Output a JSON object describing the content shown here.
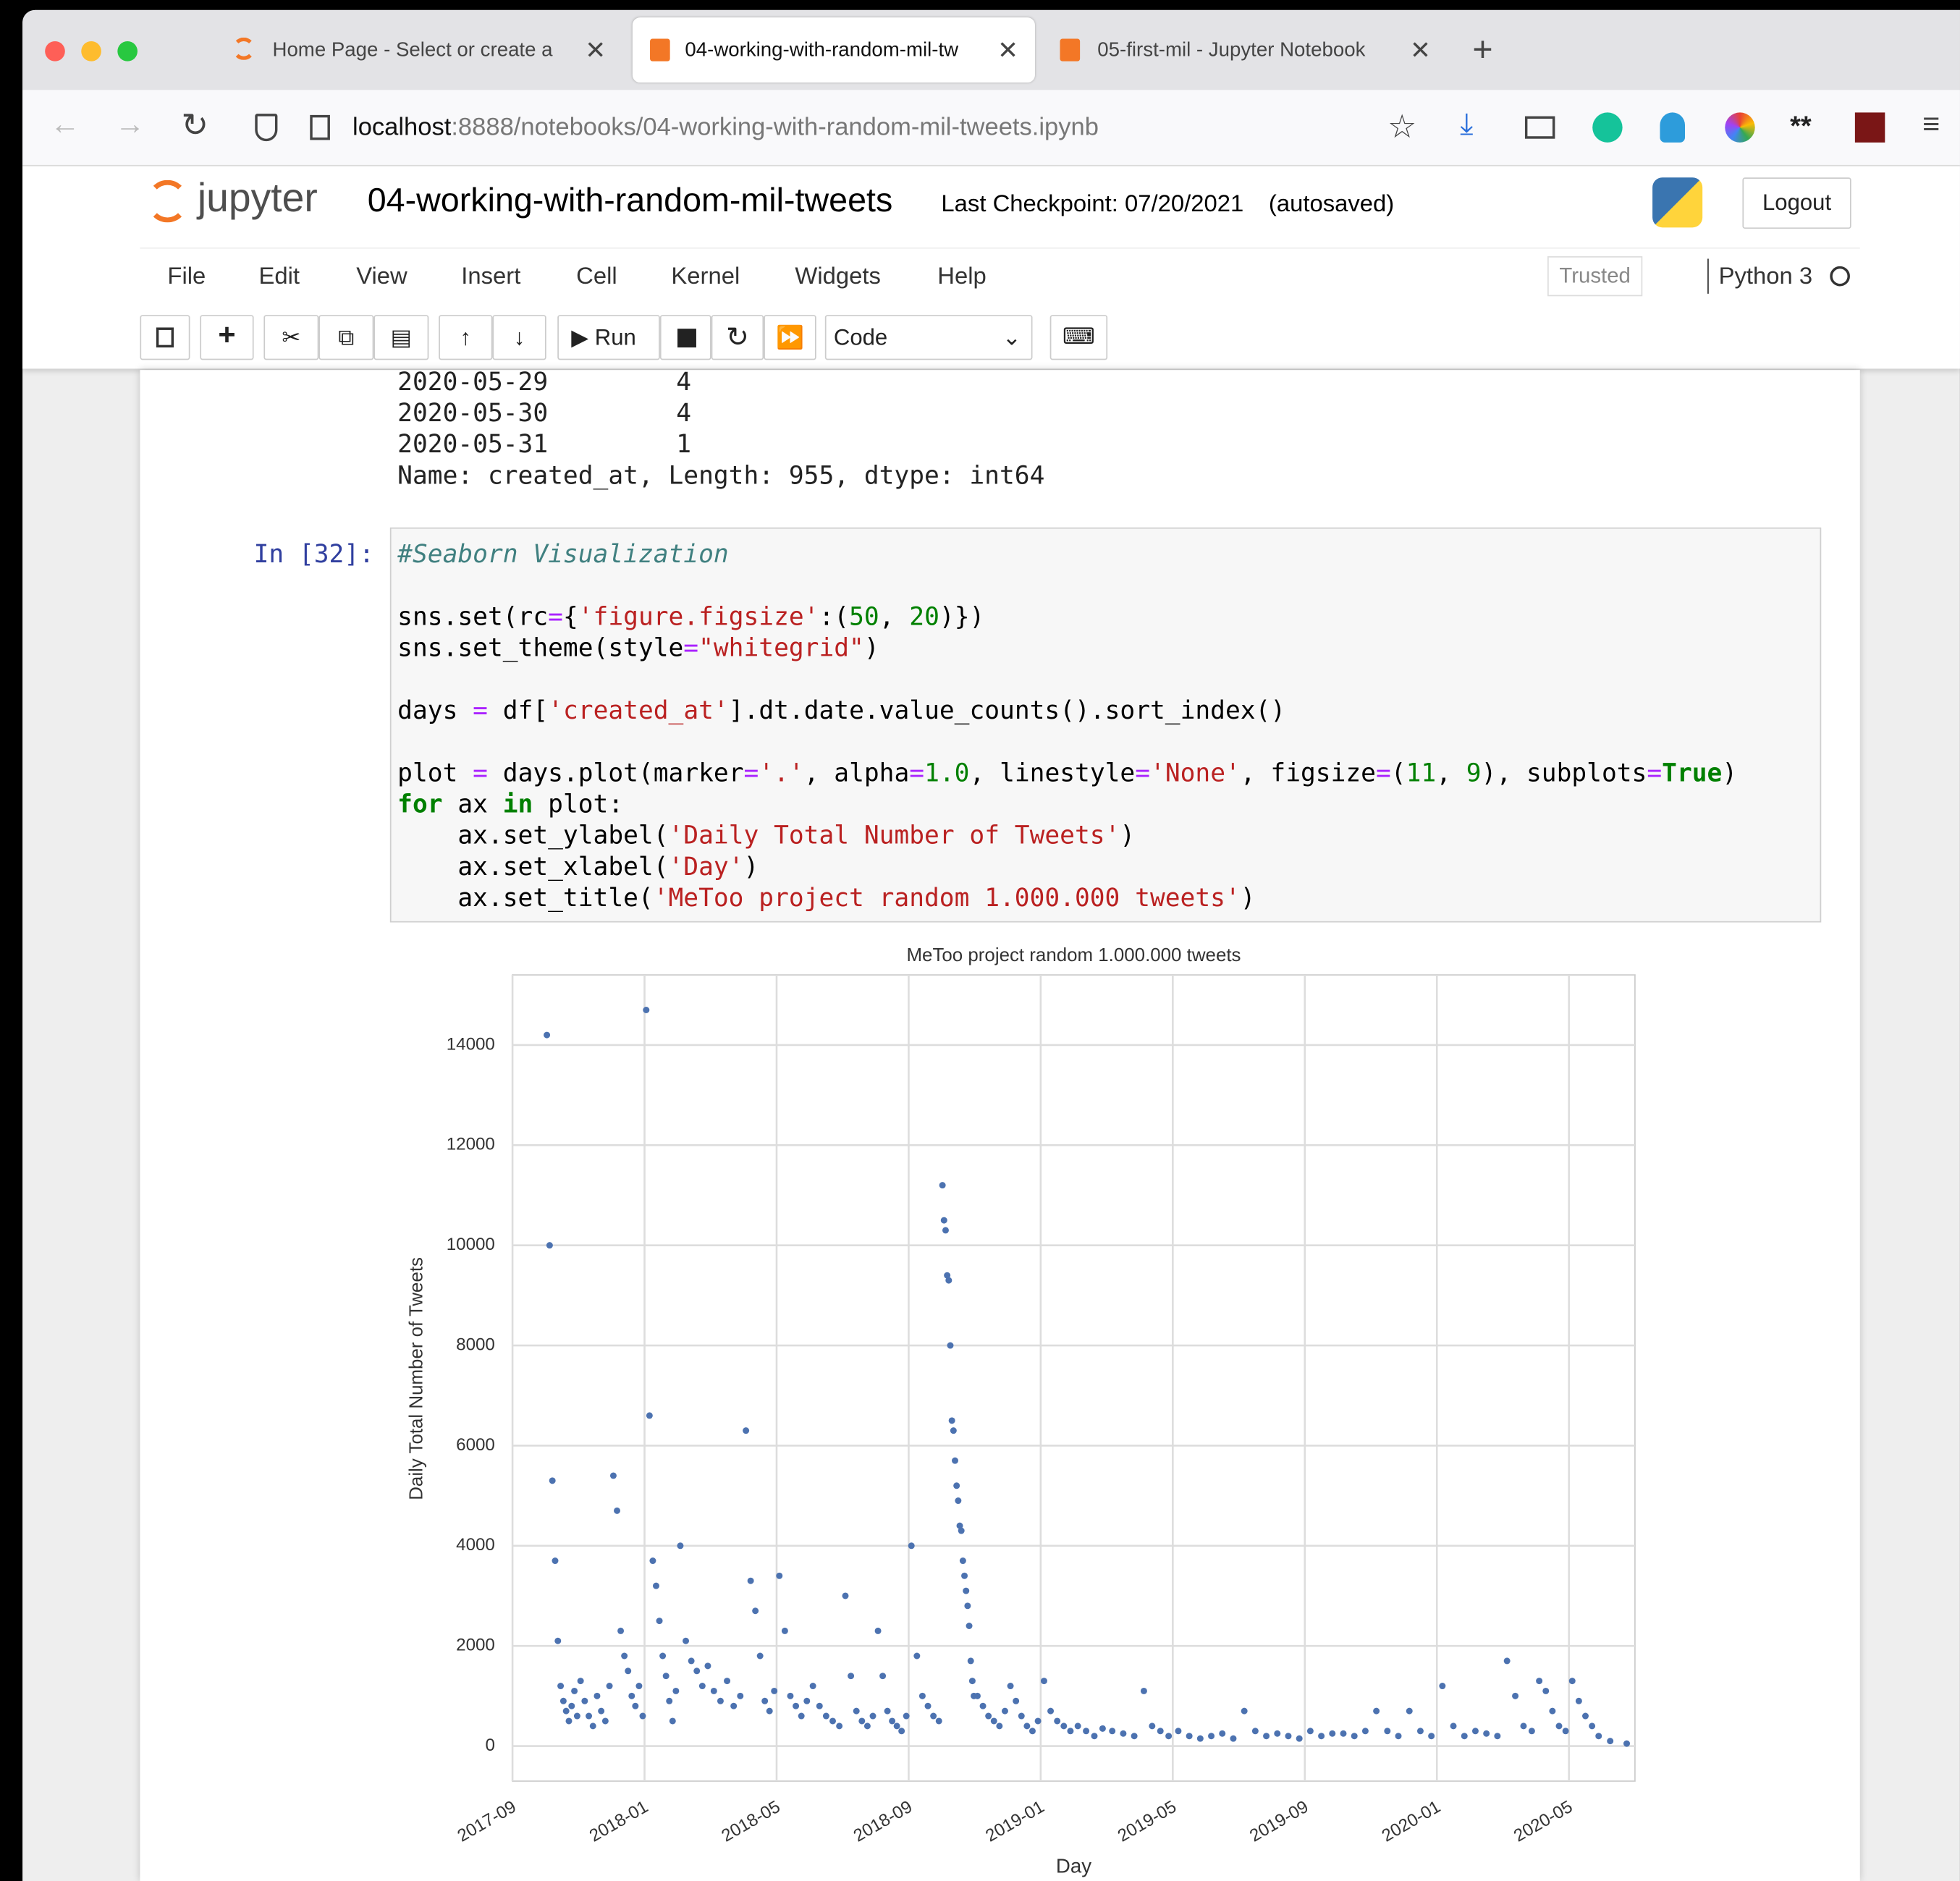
{
  "browser": {
    "tabs": [
      "Home Page - Select or create a",
      "04-working-with-random-mil-tw",
      "05-first-mil - Jupyter Notebook"
    ],
    "url_host": "localhost",
    "url_path": ":8888/notebooks/04-working-with-random-mil-tweets.ipynb"
  },
  "header": {
    "logo": "jupyter",
    "notebook_name": "04-working-with-random-mil-tweets",
    "checkpoint": "Last Checkpoint: 07/20/2021",
    "autosaved": "(autosaved)",
    "logout": "Logout"
  },
  "menu": [
    "File",
    "Edit",
    "View",
    "Insert",
    "Cell",
    "Kernel",
    "Widgets",
    "Help"
  ],
  "kernel": {
    "trusted": "Trusted",
    "name": "Python 3"
  },
  "toolbar": {
    "run": "Run",
    "cell_type": "Code"
  },
  "output": {
    "rows": [
      {
        "date": "2020-05-29",
        "count": 4
      },
      {
        "date": "2020-05-30",
        "count": 4
      },
      {
        "date": "2020-05-31",
        "count": 1
      }
    ],
    "summary": "Name: created_at, Length: 955, dtype: int64"
  },
  "cell": {
    "prompt": "In [32]:",
    "blocks": [
      [
        "#Seaborn Visualization"
      ],
      [
        "sns.set(rc={'figure.figsize':(50, 20)})",
        "sns.set_theme(style=\"whitegrid\")"
      ],
      [
        "days = df['created_at'].dt.date.value_counts().sort_index()"
      ],
      [
        "plot = days.plot(marker='.', alpha=1.0, linestyle='None', figsize=(11, 9), subplots=True)",
        "for ax in plot:",
        "    ax.set_ylabel('Daily Total Number of Tweets')",
        "    ax.set_xlabel('Day')",
        "    ax.set_title('MeToo project random 1.000.000 tweets')"
      ]
    ]
  },
  "chart_data": {
    "type": "scatter",
    "title": "MeToo project random 1.000.000 tweets",
    "xlabel": "Day",
    "ylabel": "Daily Total Number of Tweets",
    "color": "#4c72b0",
    "grid": true,
    "xlim": [
      "2017-09",
      "2020-07"
    ],
    "xticks": [
      "2017-09",
      "2018-01",
      "2018-05",
      "2018-09",
      "2019-01",
      "2019-05",
      "2019-09",
      "2020-01",
      "2020-05"
    ],
    "ylim": [
      -700,
      15400
    ],
    "yticks": [
      0,
      2000,
      4000,
      6000,
      8000,
      10000,
      12000,
      14000
    ],
    "x": [
      "2017-10",
      "2017-10",
      "2017-10",
      "2017-10",
      "2017-10",
      "2017-10",
      "2017-10",
      "2017-10",
      "2017-10",
      "2017-10",
      "2017-10",
      "2017-10",
      "2017-11",
      "2017-11",
      "2017-11",
      "2017-11",
      "2017-11",
      "2017-11",
      "2017-11",
      "2017-11",
      "2017-12",
      "2017-12",
      "2017-12",
      "2017-12",
      "2017-12",
      "2017-12",
      "2017-12",
      "2017-12",
      "2017-12",
      "2018-01",
      "2018-01",
      "2018-01",
      "2018-01",
      "2018-01",
      "2018-01",
      "2018-01",
      "2018-01",
      "2018-01",
      "2018-01",
      "2018-02",
      "2018-02",
      "2018-02",
      "2018-02",
      "2018-02",
      "2018-02",
      "2018-03",
      "2018-03",
      "2018-03",
      "2018-03",
      "2018-03",
      "2018-04",
      "2018-04",
      "2018-04",
      "2018-04",
      "2018-04",
      "2018-04",
      "2018-04",
      "2018-05",
      "2018-05",
      "2018-05",
      "2018-05",
      "2018-05",
      "2018-05",
      "2018-06",
      "2018-06",
      "2018-06",
      "2018-06",
      "2018-06",
      "2018-07",
      "2018-07",
      "2018-07",
      "2018-07",
      "2018-07",
      "2018-07",
      "2018-08",
      "2018-08",
      "2018-08",
      "2018-08",
      "2018-08",
      "2018-08",
      "2018-08",
      "2018-09",
      "2018-09",
      "2018-09",
      "2018-09",
      "2018-09",
      "2018-09",
      "2018-10",
      "2018-10",
      "2018-10",
      "2018-10",
      "2018-10",
      "2018-10",
      "2018-10",
      "2018-10",
      "2018-10",
      "2018-10",
      "2018-10",
      "2018-10",
      "2018-10",
      "2018-10",
      "2018-10",
      "2018-10",
      "2018-10",
      "2018-10",
      "2018-10",
      "2018-10",
      "2018-10",
      "2018-11",
      "2018-11",
      "2018-11",
      "2018-11",
      "2018-11",
      "2018-11",
      "2018-12",
      "2018-12",
      "2018-12",
      "2018-12",
      "2018-12",
      "2018-12",
      "2019-01",
      "2019-01",
      "2019-01",
      "2019-01",
      "2019-01",
      "2019-02",
      "2019-02",
      "2019-02",
      "2019-02",
      "2019-03",
      "2019-03",
      "2019-03",
      "2019-04",
      "2019-04",
      "2019-04",
      "2019-04",
      "2019-05",
      "2019-05",
      "2019-05",
      "2019-06",
      "2019-06",
      "2019-06",
      "2019-07",
      "2019-07",
      "2019-07",
      "2019-08",
      "2019-08",
      "2019-08",
      "2019-09",
      "2019-09",
      "2019-09",
      "2019-10",
      "2019-10",
      "2019-10",
      "2019-11",
      "2019-11",
      "2019-11",
      "2019-12",
      "2019-12",
      "2019-12",
      "2020-01",
      "2020-01",
      "2020-01",
      "2020-02",
      "2020-02",
      "2020-02",
      "2020-03",
      "2020-03",
      "2020-03",
      "2020-03",
      "2020-04",
      "2020-04",
      "2020-04",
      "2020-04",
      "2020-04",
      "2020-05",
      "2020-05",
      "2020-05",
      "2020-05",
      "2020-05",
      "2020-06",
      "2020-06"
    ],
    "values": [
      14200,
      10000,
      5300,
      3700,
      2100,
      1200,
      900,
      700,
      500,
      800,
      1100,
      600,
      1300,
      900,
      600,
      400,
      1000,
      700,
      500,
      1200,
      5400,
      4700,
      2300,
      1800,
      1500,
      1000,
      800,
      1200,
      600,
      14700,
      6600,
      3700,
      3200,
      2500,
      1800,
      1400,
      900,
      500,
      1100,
      4000,
      2100,
      1700,
      1500,
      1200,
      1600,
      1100,
      900,
      1300,
      800,
      1000,
      6300,
      3300,
      2700,
      1800,
      900,
      700,
      1100,
      3400,
      2300,
      1000,
      800,
      600,
      900,
      1200,
      800,
      600,
      500,
      400,
      3000,
      1400,
      700,
      500,
      400,
      600,
      2300,
      1400,
      700,
      500,
      400,
      300,
      600,
      4000,
      1800,
      1000,
      800,
      600,
      500,
      11200,
      10500,
      10300,
      9400,
      9300,
      8000,
      6500,
      6300,
      5700,
      5200,
      4900,
      4400,
      4300,
      3700,
      3400,
      3100,
      2800,
      2400,
      1700,
      1300,
      1000,
      1000,
      800,
      600,
      500,
      400,
      700,
      1200,
      900,
      600,
      400,
      300,
      500,
      1300,
      700,
      500,
      400,
      300,
      400,
      300,
      200,
      350,
      300,
      250,
      200,
      1100,
      400,
      300,
      200,
      300,
      200,
      150,
      200,
      250,
      150,
      700,
      300,
      200,
      250,
      200,
      150,
      300,
      200,
      250,
      250,
      200,
      300,
      700,
      300,
      200,
      700,
      300,
      200,
      1200,
      400,
      200,
      300,
      250,
      200,
      1700,
      1000,
      400,
      300,
      1300,
      1100,
      700,
      400,
      300,
      1300,
      900,
      600,
      400,
      200,
      100,
      50
    ]
  }
}
